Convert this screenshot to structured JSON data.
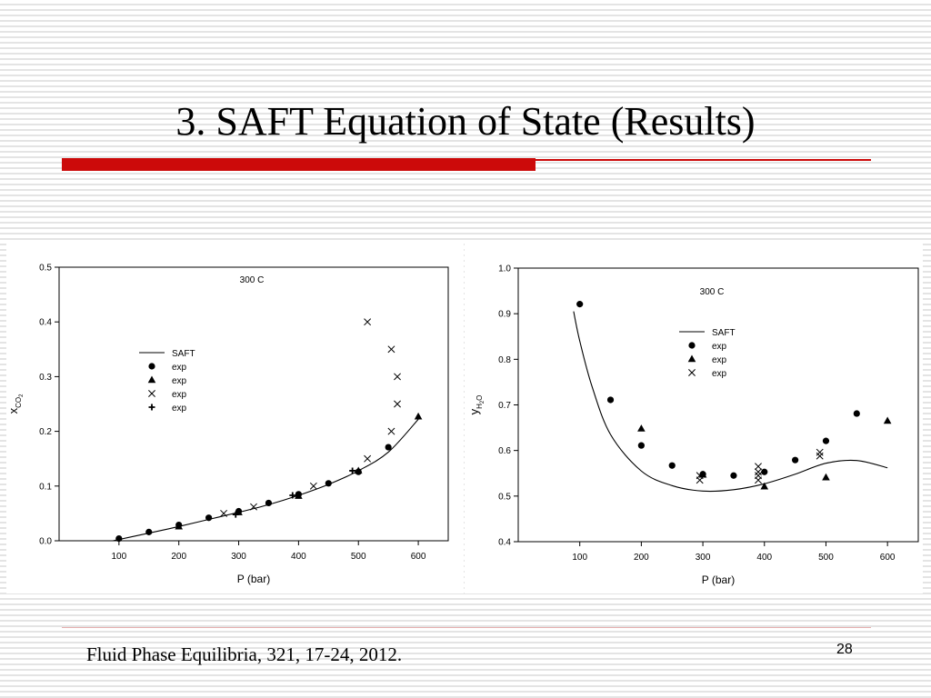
{
  "slide": {
    "title": "3. SAFT Equation of State (Results)",
    "citation": "Fluid Phase Equilibria, 321, 17-24, 2012.",
    "page_number": "28",
    "accent_color": "#cc0a0a"
  },
  "chart_data": [
    {
      "type": "scatter",
      "annotation": "300 C",
      "xlabel": "P (bar)",
      "ylabel": {
        "main": "x",
        "sub": "CO",
        "sub2": "2"
      },
      "xlim": [
        0,
        650
      ],
      "ylim": [
        0,
        0.5
      ],
      "xticks": [
        100,
        200,
        300,
        400,
        500,
        600
      ],
      "yticks": [
        0.0,
        0.1,
        0.2,
        0.3,
        0.4,
        0.5
      ],
      "legend_position": "center-left",
      "line": {
        "name": "SAFT",
        "x": [
          90,
          150,
          200,
          250,
          300,
          350,
          400,
          450,
          500,
          550,
          600
        ],
        "y": [
          0.0,
          0.014,
          0.026,
          0.039,
          0.052,
          0.066,
          0.083,
          0.103,
          0.128,
          0.162,
          0.222
        ]
      },
      "series": [
        {
          "name": "exp",
          "marker": "circle",
          "x": [
            100,
            150,
            200,
            250,
            300,
            350,
            400,
            450,
            500,
            550
          ],
          "y": [
            0.004,
            0.016,
            0.029,
            0.042,
            0.054,
            0.069,
            0.085,
            0.105,
            0.126,
            0.171
          ]
        },
        {
          "name": "exp",
          "marker": "triangle",
          "x": [
            200,
            300,
            400,
            500,
            600
          ],
          "y": [
            0.026,
            0.052,
            0.082,
            0.128,
            0.227
          ]
        },
        {
          "name": "exp",
          "marker": "x",
          "x": [
            275,
            325,
            425,
            515,
            555,
            555,
            565,
            565
          ],
          "y": [
            0.05,
            0.062,
            0.1,
            0.15,
            0.2,
            0.35,
            0.3,
            0.25
          ]
        },
        {
          "name": "exp",
          "marker": "plus",
          "x": [
            295,
            390,
            490
          ],
          "y": [
            0.048,
            0.083,
            0.128
          ]
        }
      ],
      "extra_points": {
        "marker": "x",
        "x": [
          515
        ],
        "y": [
          0.4
        ]
      }
    },
    {
      "type": "scatter",
      "annotation": "300 C",
      "xlabel": "P (bar)",
      "ylabel": {
        "main": "y",
        "sub": "H",
        "sub2": "2",
        "sub3": "O"
      },
      "xlim": [
        0,
        650
      ],
      "ylim": [
        0.4,
        1.0
      ],
      "xticks": [
        100,
        200,
        300,
        400,
        500,
        600
      ],
      "yticks": [
        0.4,
        0.5,
        0.6,
        0.7,
        0.8,
        0.9,
        1.0
      ],
      "legend_position": "top-center",
      "line": {
        "name": "SAFT",
        "x": [
          90,
          100,
          120,
          150,
          200,
          250,
          300,
          350,
          400,
          450,
          500,
          550,
          600
        ],
        "y": [
          0.905,
          0.84,
          0.74,
          0.635,
          0.555,
          0.523,
          0.511,
          0.514,
          0.527,
          0.548,
          0.572,
          0.578,
          0.562
        ]
      },
      "series": [
        {
          "name": "exp",
          "marker": "circle",
          "x": [
            100,
            150,
            200,
            250,
            300,
            350,
            400,
            450,
            500,
            550
          ],
          "y": [
            0.921,
            0.711,
            0.611,
            0.567,
            0.548,
            0.545,
            0.553,
            0.579,
            0.621,
            0.681
          ]
        },
        {
          "name": "exp",
          "marker": "triangle",
          "x": [
            200,
            300,
            400,
            500,
            600
          ],
          "y": [
            0.648,
            0.547,
            0.521,
            0.541,
            0.665
          ]
        },
        {
          "name": "exp",
          "marker": "x",
          "x": [
            295,
            295,
            390,
            390,
            390,
            390,
            490,
            490
          ],
          "y": [
            0.545,
            0.535,
            0.565,
            0.553,
            0.545,
            0.535,
            0.596,
            0.588
          ]
        }
      ]
    }
  ]
}
